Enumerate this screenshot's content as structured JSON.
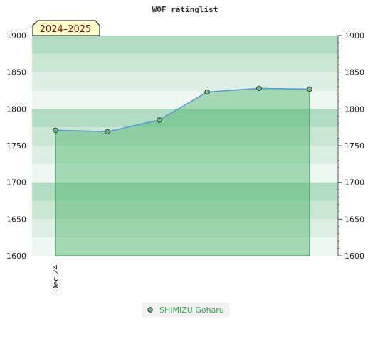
{
  "chart_data": {
    "type": "area",
    "title": "WOF ratinglist",
    "season_label": "2024–2025",
    "x_labels": [
      "Dec 24"
    ],
    "ylim": [
      1600,
      1900
    ],
    "y_ticks": [
      1600,
      1650,
      1700,
      1750,
      1800,
      1850,
      1900
    ],
    "series": [
      {
        "name": "SHIMIZU Goharu",
        "values": [
          1771,
          1769,
          1785,
          1823,
          1828,
          1827
        ]
      }
    ],
    "legend_position": "bottom-center",
    "grid": "alternating horizontal bands",
    "colors": {
      "band_dark": "#b2dcc1",
      "band_mid": "#c9e6d2",
      "band_light": "#dcefe2",
      "band_lightest": "#eef7f1",
      "area_fill": "#3dae5f",
      "area_edge": "#2e9a52",
      "line": "#5b9bd5",
      "marker": "#6fbd82",
      "legend_text": "#33aa55",
      "season_box": "#ffffcc",
      "season_text": "#8b1010"
    }
  }
}
